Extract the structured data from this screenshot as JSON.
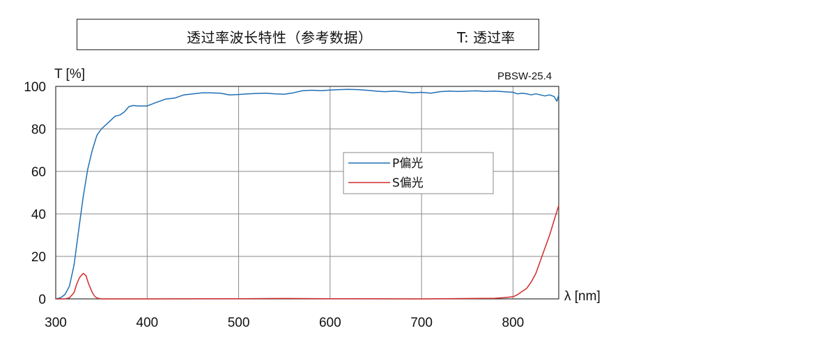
{
  "header": {
    "title": "透过率波长特性（参考数据）",
    "side_note": "T:  透过率"
  },
  "chart_data": {
    "type": "line",
    "model_code": "PBSW-25.4",
    "ylabel": "T [%]",
    "xlabel": "λ [nm]",
    "xlim": [
      300,
      850
    ],
    "ylim": [
      0,
      100
    ],
    "x_ticks": [
      300,
      400,
      500,
      600,
      700,
      800
    ],
    "y_ticks": [
      0,
      20,
      40,
      60,
      80,
      100
    ],
    "grid": true,
    "legend_position": "center-right",
    "series": [
      {
        "name": "P偏光",
        "color": "#1f6fb4",
        "x": [
          300,
          305,
          310,
          315,
          320,
          325,
          330,
          335,
          340,
          345,
          350,
          355,
          360,
          365,
          370,
          375,
          380,
          385,
          390,
          400,
          410,
          420,
          430,
          440,
          450,
          460,
          470,
          480,
          490,
          500,
          510,
          520,
          530,
          540,
          550,
          560,
          570,
          580,
          590,
          600,
          610,
          620,
          630,
          640,
          650,
          660,
          670,
          680,
          690,
          700,
          710,
          720,
          730,
          740,
          750,
          760,
          770,
          780,
          790,
          800,
          805,
          810,
          815,
          820,
          825,
          830,
          835,
          840,
          845,
          848,
          850
        ],
        "y": [
          0,
          0.5,
          2,
          6,
          16,
          32,
          48,
          61,
          70,
          77,
          80,
          82,
          84,
          86,
          86.5,
          88,
          90.5,
          91,
          90.8,
          90.8,
          92.5,
          94,
          94.5,
          96,
          96.5,
          97,
          97,
          96.8,
          96,
          96.2,
          96.5,
          96.7,
          96.8,
          96.5,
          96.3,
          97,
          98,
          98.2,
          98,
          98.3,
          98.5,
          98.6,
          98.5,
          98.2,
          97.8,
          97.5,
          97.8,
          97.4,
          97,
          97.2,
          96.8,
          97.5,
          97.8,
          97.6,
          97.8,
          97.9,
          97.6,
          97.8,
          97.5,
          97.2,
          96.5,
          96.8,
          96.5,
          96,
          96.5,
          96,
          95.5,
          96,
          95.2,
          93,
          96
        ]
      },
      {
        "name": "S偏光",
        "color": "#d12b2b",
        "x": [
          300,
          310,
          315,
          320,
          323,
          326,
          330,
          333,
          336,
          340,
          343,
          346,
          350,
          360,
          400,
          500,
          550,
          600,
          700,
          780,
          790,
          800,
          805,
          810,
          815,
          820,
          825,
          830,
          835,
          840,
          845,
          850
        ],
        "y": [
          0,
          0,
          0.5,
          3,
          7,
          10,
          12,
          11,
          7,
          3,
          1,
          0.3,
          0,
          0,
          0,
          0.1,
          0.2,
          0.1,
          0,
          0.3,
          0.6,
          1,
          2,
          3.5,
          5,
          8,
          12,
          18,
          24,
          30,
          37,
          44
        ]
      }
    ]
  }
}
